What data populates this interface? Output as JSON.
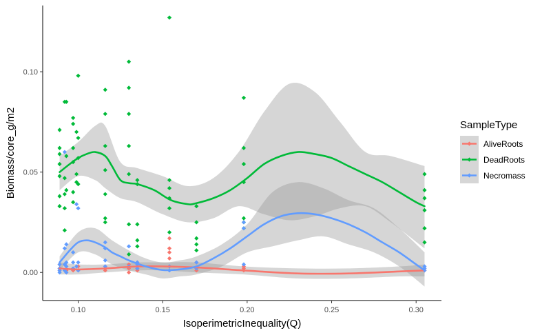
{
  "chart_data": {
    "type": "scatter",
    "title": "",
    "xlabel": "IsoperimetricInequality(Q)",
    "ylabel": "Biomass/core_g/m2",
    "xlim": [
      0.079,
      0.315
    ],
    "ylim": [
      -0.014,
      0.133
    ],
    "x_ticks": [
      0.1,
      0.15,
      0.2,
      0.25,
      0.3
    ],
    "x_tick_labels": [
      "0.10",
      "0.15",
      "0.20",
      "0.25",
      "0.30"
    ],
    "y_ticks": [
      0.0,
      0.05,
      0.1
    ],
    "y_tick_labels": [
      "0.00",
      "0.05",
      "0.10"
    ],
    "grid": false,
    "legend": {
      "title": "SampleType",
      "position": "right"
    },
    "colors": {
      "AliveRoots": "#F8766D",
      "DeadRoots": "#00BA38",
      "Necromass": "#619CFF",
      "ribbon": "#999999"
    },
    "series": [
      {
        "name": "AliveRoots",
        "points": [
          [
            0.089,
            0.004
          ],
          [
            0.089,
            0.002
          ],
          [
            0.089,
            0.001
          ],
          [
            0.093,
            0.003
          ],
          [
            0.093,
            0.001
          ],
          [
            0.093,
            0.0
          ],
          [
            0.097,
            0.002
          ],
          [
            0.097,
            0.001
          ],
          [
            0.1,
            0.003
          ],
          [
            0.1,
            0.001
          ],
          [
            0.116,
            0.003
          ],
          [
            0.116,
            0.002
          ],
          [
            0.116,
            0.001
          ],
          [
            0.13,
            0.004
          ],
          [
            0.13,
            0.002
          ],
          [
            0.13,
            0.0
          ],
          [
            0.135,
            0.005
          ],
          [
            0.135,
            0.002
          ],
          [
            0.135,
            0.001
          ],
          [
            0.154,
            0.017
          ],
          [
            0.154,
            0.012
          ],
          [
            0.154,
            0.01
          ],
          [
            0.154,
            0.007
          ],
          [
            0.154,
            0.003
          ],
          [
            0.17,
            0.005
          ],
          [
            0.17,
            0.002
          ],
          [
            0.17,
            0.001
          ],
          [
            0.198,
            0.003
          ],
          [
            0.198,
            0.002
          ],
          [
            0.198,
            0.001
          ],
          [
            0.305,
            0.002
          ],
          [
            0.305,
            0.001
          ]
        ],
        "smooth": [
          [
            0.089,
            0.002
          ],
          [
            0.1,
            0.0015
          ],
          [
            0.116,
            0.002
          ],
          [
            0.135,
            0.003
          ],
          [
            0.15,
            0.003
          ],
          [
            0.17,
            0.0025
          ],
          [
            0.198,
            0.001
          ],
          [
            0.23,
            -0.0005
          ],
          [
            0.26,
            -0.0005
          ],
          [
            0.29,
            0.0005
          ],
          [
            0.305,
            0.001
          ]
        ],
        "ci_upper": [
          [
            0.089,
            0.005
          ],
          [
            0.1,
            0.004
          ],
          [
            0.116,
            0.004
          ],
          [
            0.135,
            0.005
          ],
          [
            0.15,
            0.005
          ],
          [
            0.17,
            0.005
          ],
          [
            0.198,
            0.003
          ],
          [
            0.23,
            0.002
          ],
          [
            0.26,
            0.002
          ],
          [
            0.29,
            0.003
          ],
          [
            0.305,
            0.004
          ]
        ],
        "ci_lower": [
          [
            0.089,
            -0.001
          ],
          [
            0.1,
            -0.001
          ],
          [
            0.116,
            0.0
          ],
          [
            0.135,
            0.001
          ],
          [
            0.15,
            0.001
          ],
          [
            0.17,
            0.0
          ],
          [
            0.198,
            -0.001
          ],
          [
            0.23,
            -0.003
          ],
          [
            0.26,
            -0.003
          ],
          [
            0.29,
            -0.002
          ],
          [
            0.305,
            -0.002
          ]
        ]
      },
      {
        "name": "DeadRoots",
        "points": [
          [
            0.089,
            0.071
          ],
          [
            0.089,
            0.062
          ],
          [
            0.089,
            0.059
          ],
          [
            0.089,
            0.054
          ],
          [
            0.089,
            0.048
          ],
          [
            0.089,
            0.038
          ],
          [
            0.089,
            0.033
          ],
          [
            0.092,
            0.085
          ],
          [
            0.092,
            0.047
          ],
          [
            0.092,
            0.039
          ],
          [
            0.092,
            0.032
          ],
          [
            0.092,
            0.021
          ],
          [
            0.093,
            0.085
          ],
          [
            0.093,
            0.058
          ],
          [
            0.093,
            0.041
          ],
          [
            0.097,
            0.077
          ],
          [
            0.097,
            0.074
          ],
          [
            0.097,
            0.062
          ],
          [
            0.097,
            0.055
          ],
          [
            0.097,
            0.04
          ],
          [
            0.097,
            0.035
          ],
          [
            0.099,
            0.07
          ],
          [
            0.099,
            0.049
          ],
          [
            0.099,
            0.045
          ],
          [
            0.1,
            0.098
          ],
          [
            0.1,
            0.067
          ],
          [
            0.1,
            0.057
          ],
          [
            0.1,
            0.044
          ],
          [
            0.116,
            0.091
          ],
          [
            0.116,
            0.079
          ],
          [
            0.116,
            0.063
          ],
          [
            0.116,
            0.051
          ],
          [
            0.116,
            0.039
          ],
          [
            0.116,
            0.027
          ],
          [
            0.116,
            0.025
          ],
          [
            0.13,
            0.105
          ],
          [
            0.13,
            0.092
          ],
          [
            0.13,
            0.079
          ],
          [
            0.13,
            0.063
          ],
          [
            0.13,
            0.049
          ],
          [
            0.13,
            0.024
          ],
          [
            0.13,
            0.009
          ],
          [
            0.135,
            0.046
          ],
          [
            0.135,
            0.044
          ],
          [
            0.135,
            0.024
          ],
          [
            0.135,
            0.016
          ],
          [
            0.135,
            0.013
          ],
          [
            0.154,
            0.127
          ],
          [
            0.154,
            0.046
          ],
          [
            0.154,
            0.042
          ],
          [
            0.154,
            0.037
          ],
          [
            0.154,
            0.032
          ],
          [
            0.154,
            0.02
          ],
          [
            0.17,
            0.033
          ],
          [
            0.17,
            0.025
          ],
          [
            0.17,
            0.017
          ],
          [
            0.17,
            0.014
          ],
          [
            0.17,
            0.011
          ],
          [
            0.198,
            0.087
          ],
          [
            0.198,
            0.062
          ],
          [
            0.198,
            0.054
          ],
          [
            0.198,
            0.045
          ],
          [
            0.198,
            0.027
          ],
          [
            0.198,
            0.025
          ],
          [
            0.198,
            0.022
          ],
          [
            0.305,
            0.049
          ],
          [
            0.305,
            0.041
          ],
          [
            0.305,
            0.037
          ],
          [
            0.305,
            0.031
          ],
          [
            0.305,
            0.022
          ],
          [
            0.305,
            0.015
          ]
        ],
        "smooth": [
          [
            0.089,
            0.05
          ],
          [
            0.095,
            0.054
          ],
          [
            0.1,
            0.057
          ],
          [
            0.105,
            0.059
          ],
          [
            0.11,
            0.06
          ],
          [
            0.116,
            0.058
          ],
          [
            0.12,
            0.053
          ],
          [
            0.125,
            0.046
          ],
          [
            0.13,
            0.0445
          ],
          [
            0.135,
            0.044
          ],
          [
            0.145,
            0.041
          ],
          [
            0.155,
            0.036
          ],
          [
            0.165,
            0.034
          ],
          [
            0.17,
            0.0345
          ],
          [
            0.18,
            0.037
          ],
          [
            0.19,
            0.041
          ],
          [
            0.2,
            0.047
          ],
          [
            0.21,
            0.054
          ],
          [
            0.22,
            0.058
          ],
          [
            0.23,
            0.06
          ],
          [
            0.24,
            0.059
          ],
          [
            0.25,
            0.057
          ],
          [
            0.26,
            0.053
          ],
          [
            0.27,
            0.049
          ],
          [
            0.28,
            0.045
          ],
          [
            0.29,
            0.04
          ],
          [
            0.3,
            0.035
          ],
          [
            0.305,
            0.033
          ]
        ],
        "ci_upper": [
          [
            0.089,
            0.058
          ],
          [
            0.1,
            0.065
          ],
          [
            0.11,
            0.073
          ],
          [
            0.116,
            0.073
          ],
          [
            0.125,
            0.055
          ],
          [
            0.135,
            0.052
          ],
          [
            0.15,
            0.048
          ],
          [
            0.165,
            0.043
          ],
          [
            0.18,
            0.047
          ],
          [
            0.195,
            0.06
          ],
          [
            0.21,
            0.08
          ],
          [
            0.225,
            0.094
          ],
          [
            0.24,
            0.09
          ],
          [
            0.255,
            0.075
          ],
          [
            0.27,
            0.06
          ],
          [
            0.285,
            0.058
          ],
          [
            0.305,
            0.053
          ]
        ],
        "ci_lower": [
          [
            0.089,
            0.041
          ],
          [
            0.1,
            0.048
          ],
          [
            0.11,
            0.046
          ],
          [
            0.116,
            0.042
          ],
          [
            0.125,
            0.037
          ],
          [
            0.135,
            0.035
          ],
          [
            0.15,
            0.029
          ],
          [
            0.165,
            0.025
          ],
          [
            0.18,
            0.027
          ],
          [
            0.195,
            0.033
          ],
          [
            0.21,
            0.029
          ],
          [
            0.225,
            0.026
          ],
          [
            0.24,
            0.028
          ],
          [
            0.255,
            0.032
          ],
          [
            0.27,
            0.033
          ],
          [
            0.285,
            0.025
          ],
          [
            0.305,
            0.012
          ]
        ]
      },
      {
        "name": "Necromass",
        "points": [
          [
            0.089,
            0.004
          ],
          [
            0.089,
            0.002
          ],
          [
            0.089,
            0.001
          ],
          [
            0.089,
            0.0
          ],
          [
            0.092,
            0.06
          ],
          [
            0.092,
            0.012
          ],
          [
            0.092,
            0.004
          ],
          [
            0.092,
            0.001
          ],
          [
            0.093,
            0.014
          ],
          [
            0.093,
            0.005
          ],
          [
            0.093,
            0.003
          ],
          [
            0.093,
            0.0
          ],
          [
            0.097,
            0.01
          ],
          [
            0.097,
            0.005
          ],
          [
            0.097,
            0.002
          ],
          [
            0.099,
            0.034
          ],
          [
            0.099,
            0.003
          ],
          [
            0.1,
            0.032
          ],
          [
            0.1,
            0.005
          ],
          [
            0.1,
            0.001
          ],
          [
            0.116,
            0.015
          ],
          [
            0.116,
            0.012
          ],
          [
            0.116,
            0.006
          ],
          [
            0.116,
            0.003
          ],
          [
            0.13,
            0.013
          ],
          [
            0.13,
            0.003
          ],
          [
            0.135,
            0.005
          ],
          [
            0.135,
            0.004
          ],
          [
            0.135,
            0.002
          ],
          [
            0.154,
            0.003
          ],
          [
            0.154,
            0.001
          ],
          [
            0.17,
            0.005
          ],
          [
            0.17,
            0.002
          ],
          [
            0.198,
            0.025
          ],
          [
            0.198,
            0.022
          ],
          [
            0.198,
            0.004
          ],
          [
            0.305,
            0.003
          ],
          [
            0.305,
            0.002
          ],
          [
            0.305,
            0.001
          ]
        ],
        "smooth": [
          [
            0.089,
            0.005
          ],
          [
            0.095,
            0.011
          ],
          [
            0.1,
            0.015
          ],
          [
            0.105,
            0.016
          ],
          [
            0.11,
            0.015
          ],
          [
            0.116,
            0.0125
          ],
          [
            0.12,
            0.01
          ],
          [
            0.125,
            0.008
          ],
          [
            0.13,
            0.006
          ],
          [
            0.14,
            0.003
          ],
          [
            0.15,
            0.0012
          ],
          [
            0.16,
            0.0015
          ],
          [
            0.17,
            0.003
          ],
          [
            0.18,
            0.007
          ],
          [
            0.19,
            0.012
          ],
          [
            0.2,
            0.018
          ],
          [
            0.21,
            0.024
          ],
          [
            0.22,
            0.028
          ],
          [
            0.23,
            0.0295
          ],
          [
            0.24,
            0.029
          ],
          [
            0.25,
            0.027
          ],
          [
            0.26,
            0.024
          ],
          [
            0.27,
            0.02
          ],
          [
            0.28,
            0.015
          ],
          [
            0.29,
            0.01
          ],
          [
            0.3,
            0.004
          ],
          [
            0.305,
            0.001
          ]
        ],
        "ci_upper": [
          [
            0.089,
            0.008
          ],
          [
            0.1,
            0.02
          ],
          [
            0.11,
            0.022
          ],
          [
            0.12,
            0.016
          ],
          [
            0.13,
            0.011
          ],
          [
            0.14,
            0.007
          ],
          [
            0.15,
            0.005
          ],
          [
            0.16,
            0.006
          ],
          [
            0.17,
            0.008
          ],
          [
            0.185,
            0.014
          ],
          [
            0.2,
            0.024
          ],
          [
            0.215,
            0.04
          ],
          [
            0.23,
            0.045
          ],
          [
            0.245,
            0.042
          ],
          [
            0.26,
            0.036
          ],
          [
            0.275,
            0.032
          ],
          [
            0.29,
            0.022
          ],
          [
            0.305,
            0.01
          ]
        ],
        "ci_lower": [
          [
            0.089,
            0.001
          ],
          [
            0.1,
            0.01
          ],
          [
            0.11,
            0.009
          ],
          [
            0.12,
            0.004
          ],
          [
            0.13,
            0.001
          ],
          [
            0.14,
            -0.001
          ],
          [
            0.15,
            -0.003
          ],
          [
            0.16,
            -0.002
          ],
          [
            0.17,
            -0.001
          ],
          [
            0.185,
            0.003
          ],
          [
            0.2,
            0.01
          ],
          [
            0.215,
            0.013
          ],
          [
            0.23,
            0.016
          ],
          [
            0.245,
            0.018
          ],
          [
            0.26,
            0.014
          ],
          [
            0.275,
            0.01
          ],
          [
            0.29,
            0.003
          ],
          [
            0.305,
            -0.007
          ]
        ]
      }
    ]
  }
}
